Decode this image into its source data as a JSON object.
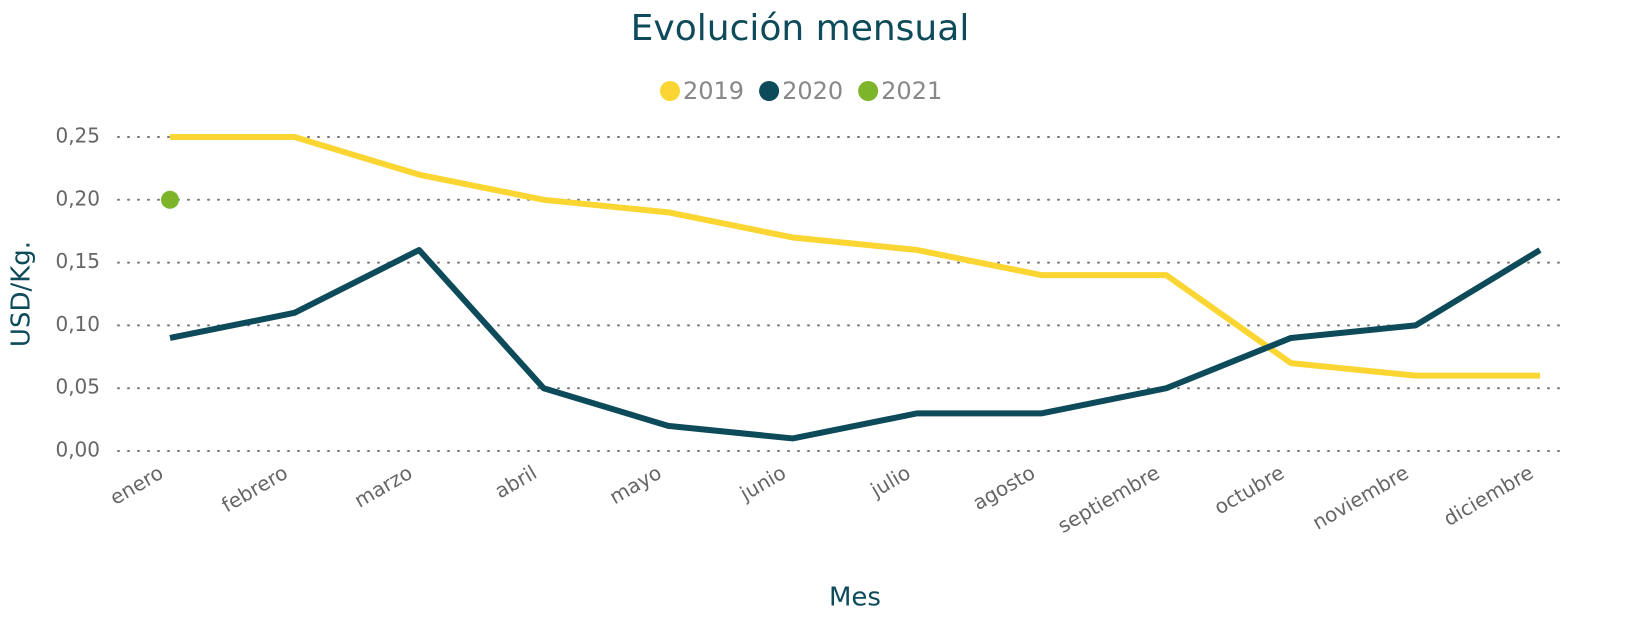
{
  "chart_data": {
    "type": "line",
    "title": "Evolución mensual",
    "xlabel": "Mes",
    "ylabel": "USD/Kg.",
    "categories": [
      "enero",
      "febrero",
      "marzo",
      "abril",
      "mayo",
      "junio",
      "julio",
      "agosto",
      "septiembre",
      "octubre",
      "noviembre",
      "diciembre"
    ],
    "series": [
      {
        "name": "2019",
        "color": "#fbd633",
        "values": [
          0.25,
          0.25,
          0.22,
          0.2,
          0.19,
          0.17,
          0.16,
          0.14,
          0.14,
          0.07,
          0.06,
          0.06
        ]
      },
      {
        "name": "2020",
        "color": "#0d4a5a",
        "values": [
          0.09,
          0.11,
          0.16,
          0.05,
          0.02,
          0.01,
          0.03,
          0.03,
          0.05,
          0.09,
          0.1,
          0.16
        ]
      },
      {
        "name": "2021",
        "color": "#7cb52a",
        "values": [
          0.2,
          null,
          null,
          null,
          null,
          null,
          null,
          null,
          null,
          null,
          null,
          null
        ]
      }
    ],
    "ylim": [
      0,
      0.25
    ],
    "yticks": [
      {
        "value": 0,
        "label": "0,00"
      },
      {
        "value": 0.05,
        "label": "0,05"
      },
      {
        "value": 0.1,
        "label": "0,10"
      },
      {
        "value": 0.15,
        "label": "0,15"
      },
      {
        "value": 0.2,
        "label": "0,20"
      },
      {
        "value": 0.25,
        "label": "0,25"
      }
    ],
    "grid": true,
    "legend": "top"
  }
}
